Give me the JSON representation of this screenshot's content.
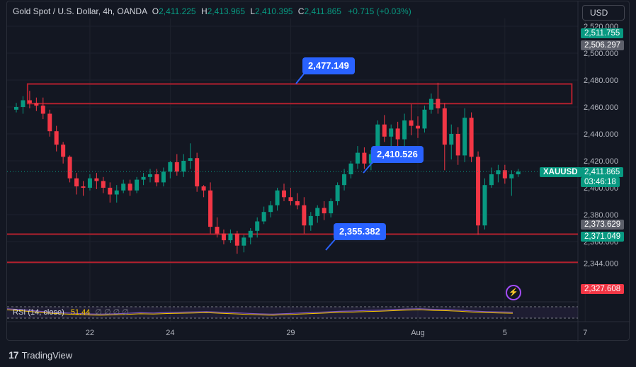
{
  "header": {
    "symbol_title": "Gold Spot / U.S. Dollar, 4h, OANDA",
    "o_label": "O",
    "o_value": "2,411.225",
    "h_label": "H",
    "h_value": "2,413.965",
    "l_label": "L",
    "l_value": "2,410.395",
    "c_label": "C",
    "c_value": "2,411.865",
    "change": "+0.715 (+0.03%)",
    "currency": "USD"
  },
  "price_tags": {
    "top_green": "2,511.755",
    "top_gray": "2,506.297",
    "symbol": "XAUUSD",
    "last": "2,411.865",
    "countdown": "03:46:18",
    "gray_mid": "2,373.629",
    "green_low": "2,371.049",
    "red_low": "2,327.608"
  },
  "callouts": {
    "high": "2,477.149",
    "mid": "2,410.526",
    "low": "2,355.382"
  },
  "rsi": {
    "label": "RSI (14, close)",
    "value": "51.44",
    "zeros": "∅ ∅ ∅ ∅"
  },
  "brand": {
    "logo": "17",
    "name": "TradingView"
  },
  "colors": {
    "up": "#089981",
    "down": "#f23645",
    "zone": "#b2202e",
    "accent": "#2962ff",
    "rsi": "#7e57c2"
  },
  "chart_data": {
    "type": "candlestick",
    "y_axis_ticks": [
      "2,520.000",
      "2,500.000",
      "2,480.000",
      "2,460.000",
      "2,440.000",
      "2,420.000",
      "2,400.000",
      "2,380.000",
      "2,360.000",
      "2,344.000"
    ],
    "x_axis_ticks": [
      "22",
      "24",
      "29",
      "Aug",
      "5",
      "7"
    ],
    "x_tick_index": [
      11,
      23,
      41,
      60,
      73,
      85
    ],
    "ylim": [
      2327,
      2522
    ],
    "zones": [
      {
        "type": "rectangle",
        "from_index": 2,
        "to_index": 83,
        "top": 2477.1,
        "bottom": 2462.5
      },
      {
        "type": "hline",
        "value": 2365.5
      },
      {
        "type": "hline",
        "value": 2344.6
      }
    ],
    "candles": [
      [
        2458,
        2463,
        2456,
        2460
      ],
      [
        2460,
        2468,
        2455,
        2465
      ],
      [
        2465,
        2472,
        2459,
        2463
      ],
      [
        2463,
        2467,
        2457,
        2461
      ],
      [
        2461,
        2467,
        2451,
        2455
      ],
      [
        2455,
        2458,
        2438,
        2442
      ],
      [
        2442,
        2446,
        2427,
        2432
      ],
      [
        2432,
        2434,
        2418,
        2423
      ],
      [
        2423,
        2424,
        2404,
        2407
      ],
      [
        2407,
        2411,
        2395,
        2401
      ],
      [
        2401,
        2405,
        2394,
        2400
      ],
      [
        2400,
        2410,
        2398,
        2407
      ],
      [
        2407,
        2411,
        2399,
        2405
      ],
      [
        2405,
        2408,
        2396,
        2400
      ],
      [
        2400,
        2404,
        2389,
        2395
      ],
      [
        2395,
        2402,
        2389,
        2398
      ],
      [
        2398,
        2406,
        2396,
        2403
      ],
      [
        2403,
        2406,
        2394,
        2398
      ],
      [
        2398,
        2408,
        2396,
        2406
      ],
      [
        2406,
        2411,
        2402,
        2408
      ],
      [
        2408,
        2414,
        2404,
        2410
      ],
      [
        2410,
        2414,
        2401,
        2404
      ],
      [
        2404,
        2415,
        2401,
        2412
      ],
      [
        2412,
        2420,
        2407,
        2419
      ],
      [
        2419,
        2425,
        2409,
        2412
      ],
      [
        2412,
        2425,
        2408,
        2420
      ],
      [
        2420,
        2433,
        2414,
        2422
      ],
      [
        2422,
        2426,
        2397,
        2401
      ],
      [
        2401,
        2402,
        2393,
        2398
      ],
      [
        2398,
        2404,
        2366,
        2371
      ],
      [
        2371,
        2378,
        2363,
        2366
      ],
      [
        2366,
        2369,
        2358,
        2361
      ],
      [
        2361,
        2369,
        2359,
        2366
      ],
      [
        2366,
        2368,
        2351,
        2357
      ],
      [
        2357,
        2365,
        2352,
        2363
      ],
      [
        2363,
        2370,
        2358,
        2368
      ],
      [
        2368,
        2378,
        2363,
        2375
      ],
      [
        2375,
        2386,
        2373,
        2382
      ],
      [
        2382,
        2390,
        2378,
        2387
      ],
      [
        2387,
        2400,
        2383,
        2398
      ],
      [
        2398,
        2403,
        2390,
        2393
      ],
      [
        2393,
        2400,
        2387,
        2390
      ],
      [
        2390,
        2396,
        2384,
        2387
      ],
      [
        2387,
        2393,
        2366,
        2372
      ],
      [
        2372,
        2382,
        2368,
        2379
      ],
      [
        2379,
        2387,
        2374,
        2385
      ],
      [
        2385,
        2390,
        2376,
        2381
      ],
      [
        2381,
        2392,
        2378,
        2390
      ],
      [
        2390,
        2404,
        2387,
        2402
      ],
      [
        2402,
        2414,
        2398,
        2410
      ],
      [
        2410,
        2420,
        2407,
        2418
      ],
      [
        2418,
        2431,
        2414,
        2426
      ],
      [
        2426,
        2430,
        2414,
        2418
      ],
      [
        2418,
        2428,
        2413,
        2425
      ],
      [
        2425,
        2450,
        2422,
        2447
      ],
      [
        2447,
        2454,
        2434,
        2438
      ],
      [
        2438,
        2447,
        2430,
        2444
      ],
      [
        2444,
        2449,
        2429,
        2436
      ],
      [
        2436,
        2455,
        2431,
        2450
      ],
      [
        2450,
        2462,
        2439,
        2446
      ],
      [
        2446,
        2453,
        2437,
        2444
      ],
      [
        2444,
        2461,
        2441,
        2458
      ],
      [
        2458,
        2470,
        2455,
        2466
      ],
      [
        2466,
        2478,
        2455,
        2459
      ],
      [
        2459,
        2463,
        2413,
        2432
      ],
      [
        2432,
        2447,
        2421,
        2440
      ],
      [
        2440,
        2445,
        2417,
        2424
      ],
      [
        2424,
        2459,
        2419,
        2452
      ],
      [
        2452,
        2456,
        2419,
        2423
      ],
      [
        2423,
        2427,
        2365,
        2372
      ],
      [
        2372,
        2407,
        2369,
        2402
      ],
      [
        2402,
        2415,
        2400,
        2410
      ],
      [
        2410,
        2417,
        2404,
        2413
      ],
      [
        2413,
        2417,
        2403,
        2407
      ],
      [
        2407,
        2413,
        2394,
        2410
      ],
      [
        2410,
        2414,
        2408,
        2412
      ]
    ],
    "rsi_series": [
      63,
      60,
      56,
      52,
      49,
      47,
      45,
      44,
      45,
      47,
      49,
      48,
      50,
      51,
      52,
      53,
      51,
      49,
      47,
      45,
      44,
      46,
      48,
      50,
      52,
      54,
      55,
      57,
      58,
      60,
      62,
      63,
      61,
      60,
      58,
      55,
      53,
      52,
      51
    ]
  }
}
